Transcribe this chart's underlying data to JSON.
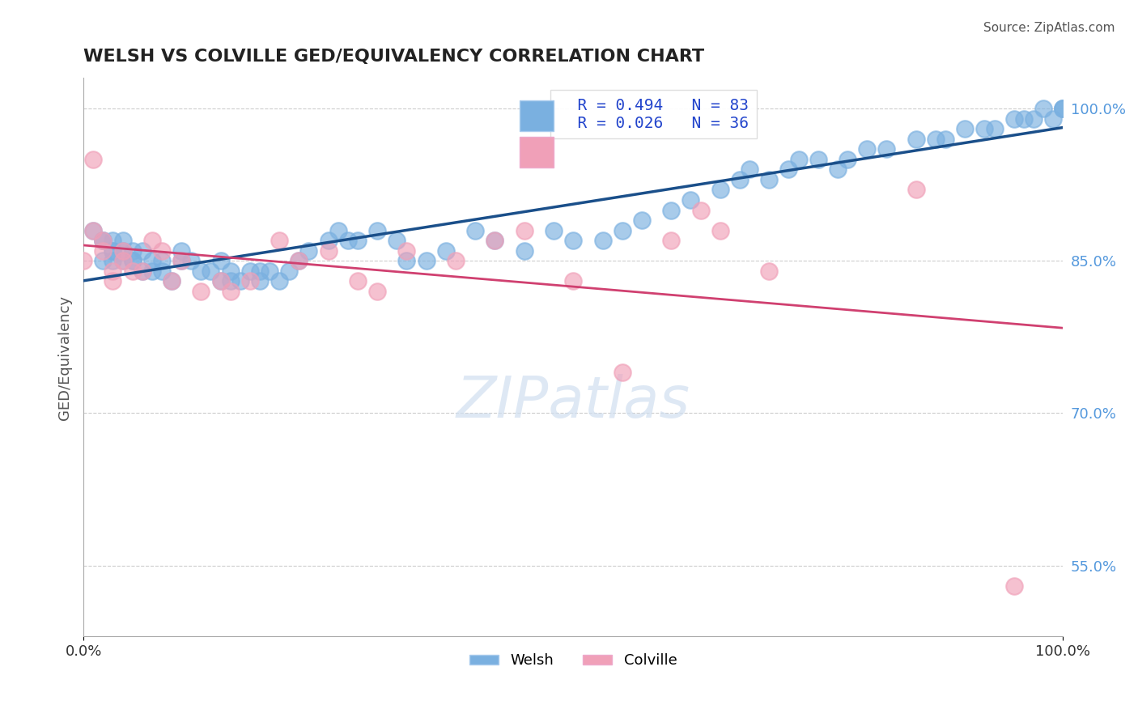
{
  "title": "WELSH VS COLVILLE GED/EQUIVALENCY CORRELATION CHART",
  "source": "Source: ZipAtlas.com",
  "xlabel": "",
  "ylabel": "GED/Equivalency",
  "xlim": [
    0.0,
    1.0
  ],
  "ylim": [
    0.48,
    1.03
  ],
  "ytick_positions": [
    0.55,
    0.7,
    0.85,
    1.0
  ],
  "ytick_labels": [
    "55.0%",
    "70.0%",
    "85.0%",
    "100.0%"
  ],
  "xtick_positions": [
    0.0,
    1.0
  ],
  "xtick_labels": [
    "0.0%",
    "100.0%"
  ],
  "welsh_color": "#7ab0e0",
  "colville_color": "#f0a0b8",
  "welsh_line_color": "#1a4f8a",
  "colville_line_color": "#d04070",
  "legend_welsh_R": "R = 0.494",
  "legend_welsh_N": "N = 83",
  "legend_colville_R": "R = 0.026",
  "legend_colville_N": "N = 36",
  "grid_color": "#cccccc",
  "background_color": "#ffffff",
  "welsh_x": [
    0.01,
    0.02,
    0.02,
    0.02,
    0.03,
    0.03,
    0.03,
    0.03,
    0.04,
    0.04,
    0.04,
    0.05,
    0.05,
    0.05,
    0.06,
    0.06,
    0.07,
    0.07,
    0.08,
    0.08,
    0.09,
    0.1,
    0.1,
    0.11,
    0.12,
    0.13,
    0.14,
    0.14,
    0.15,
    0.15,
    0.16,
    0.17,
    0.18,
    0.18,
    0.19,
    0.2,
    0.21,
    0.22,
    0.23,
    0.25,
    0.26,
    0.27,
    0.28,
    0.3,
    0.32,
    0.33,
    0.35,
    0.37,
    0.4,
    0.42,
    0.45,
    0.48,
    0.5,
    0.53,
    0.55,
    0.57,
    0.6,
    0.62,
    0.65,
    0.67,
    0.68,
    0.7,
    0.72,
    0.73,
    0.75,
    0.77,
    0.78,
    0.8,
    0.82,
    0.85,
    0.87,
    0.88,
    0.9,
    0.92,
    0.93,
    0.95,
    0.96,
    0.97,
    0.98,
    0.99,
    1.0,
    1.0,
    1.0
  ],
  "welsh_y": [
    0.88,
    0.87,
    0.87,
    0.85,
    0.87,
    0.86,
    0.86,
    0.85,
    0.86,
    0.87,
    0.85,
    0.86,
    0.85,
    0.85,
    0.86,
    0.84,
    0.85,
    0.84,
    0.84,
    0.85,
    0.83,
    0.85,
    0.86,
    0.85,
    0.84,
    0.84,
    0.85,
    0.83,
    0.84,
    0.83,
    0.83,
    0.84,
    0.83,
    0.84,
    0.84,
    0.83,
    0.84,
    0.85,
    0.86,
    0.87,
    0.88,
    0.87,
    0.87,
    0.88,
    0.87,
    0.85,
    0.85,
    0.86,
    0.88,
    0.87,
    0.86,
    0.88,
    0.87,
    0.87,
    0.88,
    0.89,
    0.9,
    0.91,
    0.92,
    0.93,
    0.94,
    0.93,
    0.94,
    0.95,
    0.95,
    0.94,
    0.95,
    0.96,
    0.96,
    0.97,
    0.97,
    0.97,
    0.98,
    0.98,
    0.98,
    0.99,
    0.99,
    0.99,
    1.0,
    0.99,
    1.0,
    1.0,
    1.0
  ],
  "colville_x": [
    0.0,
    0.01,
    0.01,
    0.02,
    0.02,
    0.03,
    0.03,
    0.04,
    0.04,
    0.05,
    0.06,
    0.07,
    0.08,
    0.09,
    0.1,
    0.12,
    0.14,
    0.15,
    0.17,
    0.2,
    0.22,
    0.25,
    0.28,
    0.3,
    0.33,
    0.38,
    0.42,
    0.45,
    0.5,
    0.55,
    0.6,
    0.63,
    0.65,
    0.7,
    0.85,
    0.95
  ],
  "colville_y": [
    0.85,
    0.88,
    0.95,
    0.86,
    0.87,
    0.84,
    0.83,
    0.86,
    0.85,
    0.84,
    0.84,
    0.87,
    0.86,
    0.83,
    0.85,
    0.82,
    0.83,
    0.82,
    0.83,
    0.87,
    0.85,
    0.86,
    0.83,
    0.82,
    0.86,
    0.85,
    0.87,
    0.88,
    0.83,
    0.74,
    0.87,
    0.9,
    0.88,
    0.84,
    0.92,
    0.53
  ]
}
